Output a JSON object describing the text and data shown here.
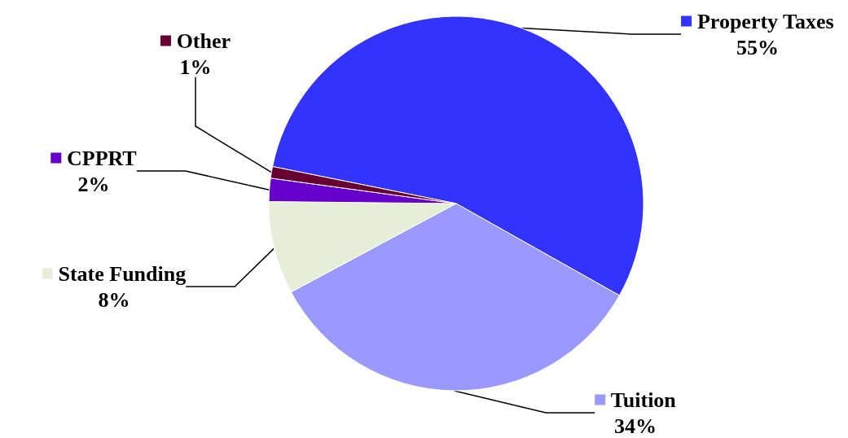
{
  "chart_data": {
    "type": "pie",
    "categories": [
      "Property Taxes",
      "Tuition",
      "State Funding",
      "CPPRT",
      "Other"
    ],
    "values": [
      55,
      34,
      8,
      2,
      1
    ],
    "value_labels": [
      "55%",
      "34%",
      "8%",
      "2%",
      "1%"
    ],
    "colors": [
      "#3333ff",
      "#9999ff",
      "#e6eed8",
      "#6600cc",
      "#660033"
    ],
    "legend": "left"
  }
}
